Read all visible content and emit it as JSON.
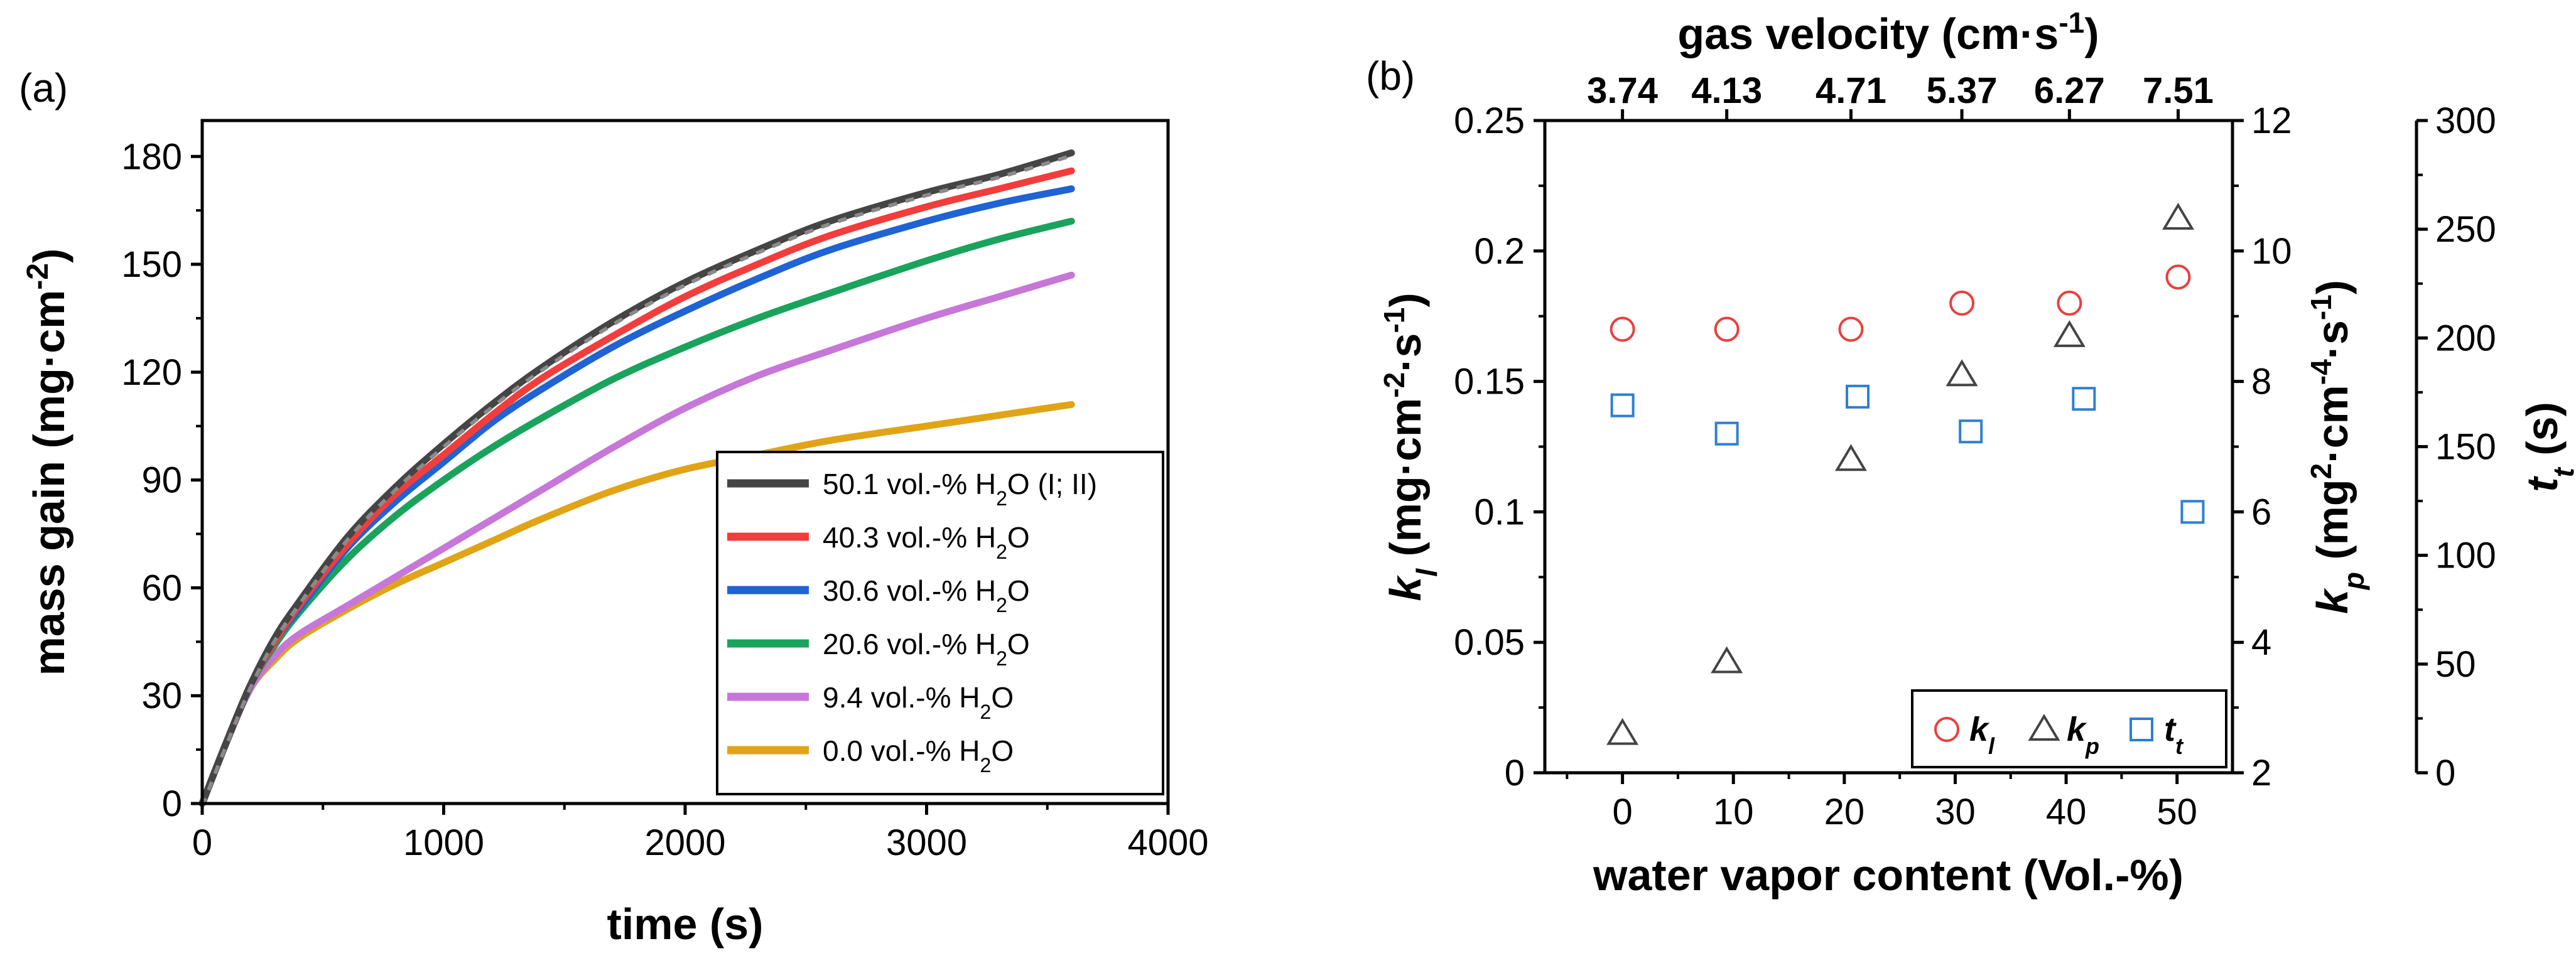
{
  "panel_labels": {
    "a": "(a)",
    "b": "(b)"
  },
  "chart_data": [
    {
      "type": "line",
      "title": "",
      "xlabel": "time (s)",
      "ylabel_parts": {
        "main": "mass gain (mg·cm",
        "sup": "-2",
        "end": ")"
      },
      "xlim": [
        0,
        4000
      ],
      "ylim": [
        0,
        190
      ],
      "xticks": [
        "0",
        "1000",
        "2000",
        "3000",
        "4000"
      ],
      "yticks": [
        "0",
        "30",
        "60",
        "90",
        "120",
        "150",
        "180"
      ],
      "legend_position": "bottom-right",
      "series": [
        {
          "name": "50.1 vol.-% H2O (I; II)",
          "label_main": "50.1 vol.-% H",
          "label_sub": "2",
          "label_end": "O (I; II)",
          "color": "#454545",
          "x": [
            0,
            100,
            200,
            300,
            400,
            600,
            800,
            1000,
            1200,
            1400,
            1700,
            2000,
            2300,
            2600,
            3000,
            3300,
            3600
          ],
          "y": [
            0,
            17,
            33,
            46,
            56,
            74,
            88,
            100,
            111,
            121,
            134,
            145,
            154,
            162,
            170,
            175,
            181
          ]
        },
        {
          "name": "40.3 vol.-% H2O",
          "label_main": "40.3 vol.-% H",
          "label_sub": "2",
          "label_end": "O",
          "color": "#f23d3d",
          "x": [
            0,
            100,
            200,
            300,
            400,
            600,
            800,
            1000,
            1200,
            1400,
            1700,
            2000,
            2300,
            2600,
            3000,
            3300,
            3600
          ],
          "y": [
            0,
            17,
            33,
            45,
            55,
            72,
            86,
            97,
            108,
            118,
            130,
            141,
            150,
            158,
            166,
            171,
            176
          ]
        },
        {
          "name": "30.6 vol.-% H2O",
          "label_main": "30.6 vol.-% H",
          "label_sub": "2",
          "label_end": "O",
          "color": "#1f63d4",
          "x": [
            0,
            100,
            200,
            300,
            400,
            600,
            800,
            1000,
            1200,
            1400,
            1700,
            2000,
            2300,
            2600,
            3000,
            3300,
            3600
          ],
          "y": [
            0,
            17,
            33,
            45,
            54,
            71,
            84,
            95,
            106,
            115,
            127,
            137,
            146,
            154,
            162,
            167,
            171
          ]
        },
        {
          "name": "20.6 vol.-% H2O",
          "label_main": "20.6 vol.-% H",
          "label_sub": "2",
          "label_end": "O",
          "color": "#1aa35c",
          "x": [
            0,
            100,
            200,
            300,
            400,
            600,
            800,
            1000,
            1200,
            1400,
            1700,
            2000,
            2300,
            2600,
            3000,
            3300,
            3600
          ],
          "y": [
            0,
            17,
            33,
            44,
            53,
            68,
            80,
            90,
            99,
            107,
            118,
            127,
            135,
            142,
            151,
            157,
            162
          ]
        },
        {
          "name": "9.4 vol.-% H2O",
          "label_main": "9.4 vol.-% H",
          "label_sub": "2",
          "label_end": "O",
          "color": "#c677d8",
          "x": [
            0,
            100,
            200,
            300,
            400,
            600,
            800,
            1000,
            1200,
            1400,
            1700,
            2000,
            2300,
            2600,
            3000,
            3300,
            3600
          ],
          "y": [
            0,
            17,
            32,
            41,
            47,
            55,
            63,
            71,
            79,
            87,
            99,
            110,
            119,
            126,
            135,
            141,
            147
          ]
        },
        {
          "name": "0.0 vol.-% H2O",
          "label_main": "0.0 vol.-% H",
          "label_sub": "2",
          "label_end": "O",
          "color": "#e1a416",
          "x": [
            0,
            100,
            200,
            300,
            400,
            600,
            800,
            1000,
            1200,
            1400,
            1700,
            2000,
            2300,
            2600,
            3000,
            3300,
            3600
          ],
          "y": [
            0,
            17,
            32,
            40,
            46,
            54,
            61,
            67,
            73,
            79,
            87,
            93,
            97,
            101,
            105,
            108,
            111
          ]
        }
      ]
    },
    {
      "type": "scatter",
      "title": "",
      "xlabel": "water vapor content (Vol.-%)",
      "xlim": [
        -7,
        55
      ],
      "xticks": [
        "0",
        "10",
        "20",
        "30",
        "40",
        "50"
      ],
      "top_axis": {
        "label_main": "gas velocity (cm·s",
        "label_sup": "-1",
        "label_end": ")",
        "tick_positions": [
          0,
          9.4,
          20.6,
          30.6,
          40.3,
          50.1
        ],
        "tick_labels": [
          "3.74",
          "4.13",
          "4.71",
          "5.37",
          "6.27",
          "7.51"
        ]
      },
      "y_left": {
        "label_sym": "k",
        "label_sub": "l",
        "label_main": " (mg·cm",
        "label_sup": "-2",
        "label_mid": "·s",
        "label_sup2": "-1",
        "label_end": ")",
        "ylim": [
          0,
          0.25
        ],
        "ticks": [
          "0",
          "0.05",
          "0.1",
          "0.15",
          "0.2",
          "0.25"
        ]
      },
      "y_right1": {
        "label_sym": "k",
        "label_sub": "p",
        "label_main": " (mg",
        "label_sup": "2",
        "label_mid": "·cm",
        "label_sup2": "-4",
        "label_mid2": "·s",
        "label_sup3": "-1",
        "label_end": ")",
        "ylim": [
          2,
          12
        ],
        "ticks": [
          "2",
          "4",
          "6",
          "8",
          "10",
          "12"
        ]
      },
      "y_right2": {
        "label_sym": "t",
        "label_sub": "t",
        "label_end": " (s)",
        "ylim": [
          0,
          300
        ],
        "ticks": [
          "0",
          "50",
          "100",
          "150",
          "200",
          "250",
          "300"
        ]
      },
      "legend_position": "bottom-right",
      "series": [
        {
          "name": "kl",
          "label_sym": "k",
          "label_sub": "l",
          "marker": "circle",
          "color": "#e8403f",
          "axis": "left",
          "x": [
            0,
            9.4,
            20.6,
            30.6,
            40.3,
            50.1
          ],
          "y": [
            0.17,
            0.17,
            0.17,
            0.18,
            0.18,
            0.19
          ]
        },
        {
          "name": "kp",
          "label_sym": "k",
          "label_sub": "p",
          "marker": "triangle",
          "color": "#444444",
          "axis": "right1",
          "x": [
            0,
            9.4,
            20.6,
            30.6,
            40.3,
            50.1
          ],
          "y": [
            2.6,
            3.7,
            6.8,
            8.1,
            8.7,
            10.5
          ]
        },
        {
          "name": "tt",
          "label_sym": "t",
          "label_sub": "t",
          "marker": "square",
          "color": "#2d7fd3",
          "axis": "right2",
          "x": [
            0,
            9.4,
            21.2,
            31.4,
            41.6,
            51.4
          ],
          "y": [
            169,
            156,
            173,
            157,
            172,
            120
          ]
        }
      ]
    }
  ]
}
